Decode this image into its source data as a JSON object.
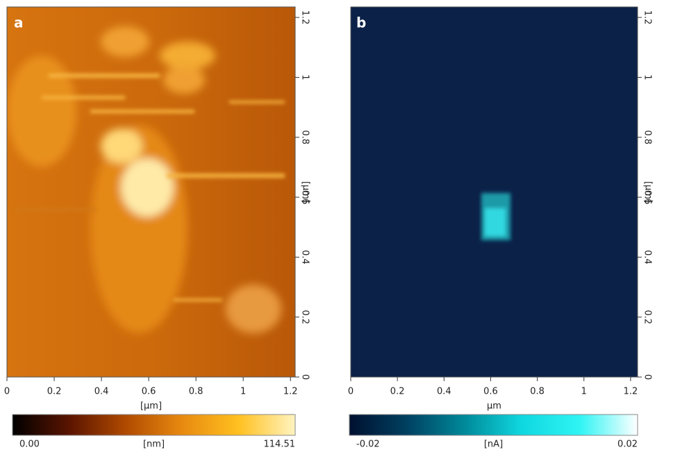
{
  "chart_data": [
    {
      "type": "image",
      "title": "a",
      "xlim": [
        0,
        1.22
      ],
      "xticks": [
        0,
        0.2,
        0.4,
        0.6,
        0.8,
        1,
        1.2
      ],
      "xlabel": "[μm]",
      "ylim": [
        0,
        1.235
      ],
      "yticks": [
        0,
        0.2,
        0.4,
        0.6,
        0.8,
        1,
        1.2
      ],
      "ylabel": "[μm]",
      "clim": [
        0,
        114.51
      ],
      "cticks": [
        {
          "value": 0,
          "label": "0.00"
        },
        114.51
      ],
      "clabel": "[nm]",
      "colormap": [
        "#000000",
        "#5a1400",
        "#b04a00",
        "#e88a10",
        "#ffc020",
        "#fff4c0"
      ]
    },
    {
      "type": "image",
      "title": "b",
      "xlim": [
        0,
        1.23
      ],
      "xticks": [
        0,
        0.2,
        0.4,
        0.6,
        0.8,
        1,
        1.2
      ],
      "xlabel": "μm",
      "ylim": [
        0,
        1.235
      ],
      "yticks": [
        0,
        0.2,
        0.4,
        0.6,
        0.8,
        1,
        1.2
      ],
      "ylabel": "[μm]",
      "clim": [
        -0.02,
        0.02
      ],
      "cticks": [
        -0.02,
        0.02
      ],
      "clabel": "[nA]",
      "colormap": [
        "#001030",
        "#004060",
        "#008a9a",
        "#10d8e0",
        "#30f4f4",
        "#ffffff"
      ]
    }
  ]
}
